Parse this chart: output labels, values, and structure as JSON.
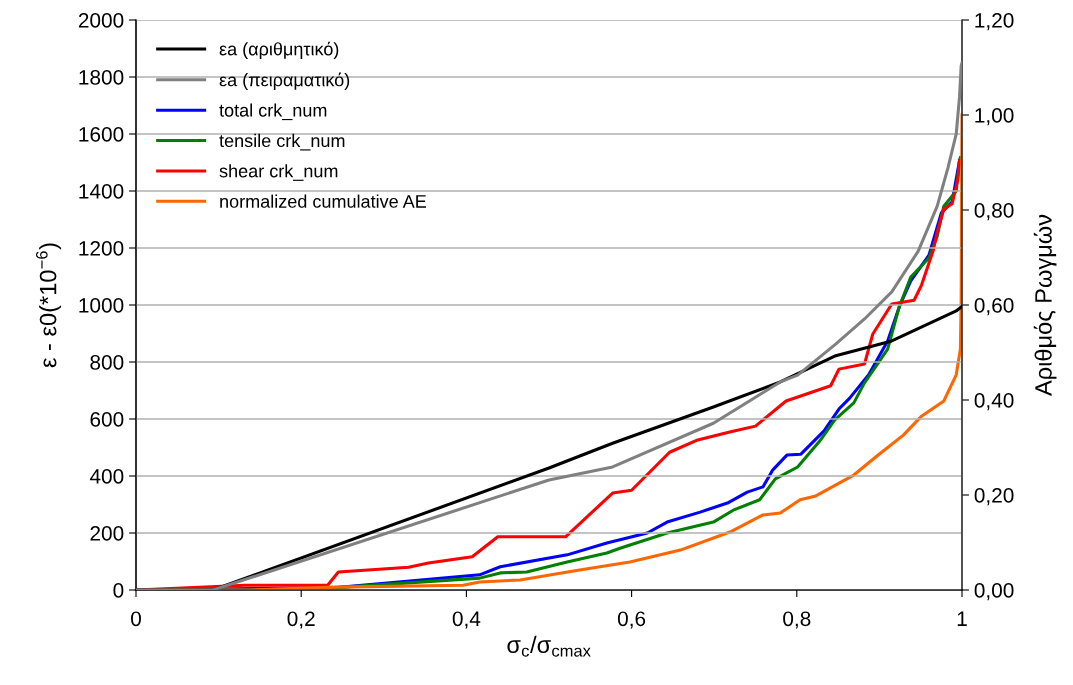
{
  "chart_data": {
    "type": "line",
    "xlabel": "σ$_{c}$/σ$_{cmax}$",
    "ylabel": "ε - ε0(*10$^{−6}$)",
    "y2label": "Αριθμός Ρωγμών",
    "xlim": [
      0,
      1
    ],
    "xticks": [
      0,
      {
        "value": 0.2,
        "label": "0,2"
      },
      {
        "value": 0.4,
        "label": "0,4"
      },
      {
        "value": 0.6,
        "label": "0,6"
      },
      {
        "value": 0.8,
        "label": "0,8"
      },
      1
    ],
    "ylim": [
      0,
      2000
    ],
    "yticks": [
      0,
      200,
      400,
      600,
      800,
      1000,
      1200,
      1400,
      1600,
      1800,
      2000
    ],
    "y2lim": [
      0,
      1.2
    ],
    "y2ticks": [
      {
        "value": 0,
        "label": "0,00"
      },
      {
        "value": 0.2,
        "label": "0,20"
      },
      {
        "value": 0.4,
        "label": "0,40"
      },
      {
        "value": 0.6,
        "label": "0,60"
      },
      {
        "value": 0.8,
        "label": "0,80"
      },
      {
        "value": 1.0,
        "label": "1,00"
      },
      {
        "value": 1.2,
        "label": "1,20"
      }
    ],
    "grid": "y",
    "legend": "top left",
    "marker": "none",
    "line_style": "solid",
    "series": [
      {
        "name": "εa (αριθμητικό)",
        "color": "#000000",
        "x": [
          0,
          0.093,
          0.5,
          0.577,
          0.699,
          0.78,
          0.846,
          0.915,
          0.993,
          1.0
        ],
        "values": [
          0,
          0,
          428,
          515,
          642,
          730,
          821,
          874,
          979,
          995
        ]
      },
      {
        "name": "εa (πειραματικό)",
        "color": "#808080",
        "x": [
          0,
          0.093,
          0.5,
          0.577,
          0.699,
          0.78,
          0.801,
          0.846,
          0.882,
          0.915,
          0.947,
          0.97,
          0.983,
          0.993,
          0.997,
          0.999,
          1.0
        ],
        "values": [
          0,
          0,
          386,
          432,
          585,
          730,
          754,
          860,
          951,
          1046,
          1189,
          1347,
          1481,
          1600,
          1730,
          1839,
          1850
        ]
      },
      {
        "name": "total crk_num",
        "color": "#0000ff",
        "axis": "y2",
        "x": [
          0,
          0.243,
          0.416,
          0.441,
          0.522,
          0.57,
          0.619,
          0.643,
          0.683,
          0.716,
          0.74,
          0.759,
          0.771,
          0.788,
          0.805,
          0.833,
          0.851,
          0.864,
          0.887,
          0.91,
          0.924,
          0.938,
          0.96,
          0.975,
          0.988,
          0.997
        ],
        "values": [
          0,
          0.005,
          0.032,
          0.049,
          0.074,
          0.099,
          0.12,
          0.143,
          0.164,
          0.183,
          0.206,
          0.217,
          0.253,
          0.284,
          0.286,
          0.335,
          0.381,
          0.404,
          0.453,
          0.524,
          0.596,
          0.651,
          0.705,
          0.794,
          0.817,
          0.904
        ]
      },
      {
        "name": "tensile crk_num",
        "color": "#008000",
        "axis": "y2",
        "x": [
          0,
          0.134,
          0.243,
          0.416,
          0.441,
          0.473,
          0.522,
          0.57,
          0.586,
          0.643,
          0.699,
          0.723,
          0.755,
          0.774,
          0.801,
          0.828,
          0.846,
          0.869,
          0.882,
          0.91,
          0.924,
          0.938,
          0.96,
          0.97,
          0.978,
          0.993,
          0.997,
          0.998
        ],
        "values": [
          0,
          0,
          0.005,
          0.025,
          0.036,
          0.038,
          0.059,
          0.078,
          0.088,
          0.12,
          0.143,
          0.168,
          0.19,
          0.234,
          0.259,
          0.314,
          0.358,
          0.394,
          0.436,
          0.507,
          0.596,
          0.659,
          0.699,
          0.745,
          0.808,
          0.84,
          0.904,
          0.91
        ]
      },
      {
        "name": "shear crk_num",
        "color": "#ff0000",
        "axis": "y2",
        "x": [
          0,
          0.132,
          0.232,
          0.245,
          0.33,
          0.354,
          0.407,
          0.438,
          0.52,
          0.577,
          0.6,
          0.646,
          0.68,
          0.72,
          0.75,
          0.787,
          0.841,
          0.851,
          0.882,
          0.892,
          0.915,
          0.942,
          0.951,
          0.965,
          0.97,
          0.978,
          0.988,
          0.995,
          0.997
        ],
        "values": [
          0,
          0.01,
          0.01,
          0.038,
          0.048,
          0.057,
          0.07,
          0.112,
          0.112,
          0.204,
          0.21,
          0.29,
          0.316,
          0.333,
          0.345,
          0.398,
          0.43,
          0.465,
          0.476,
          0.539,
          0.602,
          0.61,
          0.642,
          0.714,
          0.754,
          0.802,
          0.813,
          0.865,
          0.904
        ]
      },
      {
        "name": "normalized cumulative AE",
        "color": "#ff6600",
        "axis": "y2",
        "x": [
          0,
          0.138,
          0.243,
          0.396,
          0.416,
          0.465,
          0.537,
          0.598,
          0.659,
          0.719,
          0.759,
          0.78,
          0.804,
          0.823,
          0.869,
          0.897,
          0.929,
          0.951,
          0.978,
          0.993,
          0.998,
          0.999,
          1.0
        ],
        "values": [
          0,
          0,
          0.006,
          0.01,
          0.017,
          0.021,
          0.042,
          0.059,
          0.084,
          0.122,
          0.158,
          0.162,
          0.19,
          0.198,
          0.242,
          0.282,
          0.326,
          0.366,
          0.398,
          0.453,
          0.507,
          0.61,
          1.0
        ]
      }
    ]
  }
}
